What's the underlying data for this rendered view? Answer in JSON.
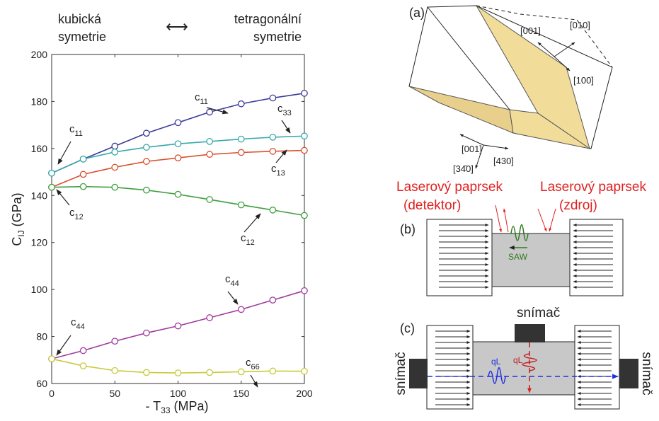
{
  "chart_data": {
    "type": "line",
    "x": [
      0,
      25,
      50,
      75,
      100,
      125,
      150,
      175,
      200
    ],
    "xlim": [
      0,
      200
    ],
    "xticks": [
      0,
      50,
      100,
      150,
      200
    ],
    "ylim": [
      60,
      200
    ],
    "yticks": [
      60,
      80,
      100,
      120,
      140,
      160,
      180,
      200
    ],
    "xlabel": {
      "text": "- T",
      "sub": "33",
      "unit": " (MPa)"
    },
    "ylabel": {
      "text": "C",
      "sub": "IJ",
      "unit": " (GPa)"
    },
    "header": {
      "left": [
        "kubická",
        "symetrie"
      ],
      "arrow": "⟷",
      "right": [
        "tetragonální",
        "symetrie"
      ]
    },
    "series": [
      {
        "color": "#3b3b9a",
        "values": [
          149.5,
          155.5,
          161,
          166.5,
          171,
          175.5,
          179,
          181.5,
          183.5
        ]
      },
      {
        "color": "#3aa8a8",
        "values": [
          149.5,
          155.5,
          158.5,
          160.5,
          162,
          163,
          164,
          164.8,
          165.3
        ]
      },
      {
        "color": "#d9502f",
        "values": [
          143.5,
          149,
          152,
          154.5,
          156,
          157.5,
          158.3,
          158.8,
          159.2
        ]
      },
      {
        "color": "#3e9e3e",
        "values": [
          143.5,
          143.8,
          143.5,
          142.3,
          140.5,
          138.3,
          136,
          133.8,
          131.5
        ]
      },
      {
        "color": "#a03a9e",
        "values": [
          70.5,
          74,
          78,
          81.5,
          84.5,
          88,
          91.5,
          95.5,
          99.5
        ]
      },
      {
        "color": "#c9c93a",
        "values": [
          70.5,
          67.5,
          65.5,
          64.7,
          64.5,
          64.7,
          65,
          65.3,
          65.2
        ]
      }
    ],
    "annotations": [
      {
        "text": "c",
        "sub": "11"
      },
      {
        "text": "c",
        "sub": "33"
      },
      {
        "text": "c",
        "sub": "11"
      },
      {
        "text": "c",
        "sub": "13"
      },
      {
        "text": "c",
        "sub": "12"
      },
      {
        "text": "c",
        "sub": "12"
      },
      {
        "text": "c",
        "sub": "44"
      },
      {
        "text": "c",
        "sub": "44"
      },
      {
        "text": "c",
        "sub": "66"
      }
    ]
  },
  "diagram": {
    "a": {
      "label": "(a)",
      "dirs": [
        "[001]",
        "[010]",
        "[100]",
        "[001]",
        "[430]",
        "[34̄0]"
      ]
    },
    "b": {
      "label": "(b)",
      "laser_left": [
        "Laserový paprsek",
        "(detektor)"
      ],
      "laser_right": [
        "Laserový paprsek",
        "(zdroj)"
      ],
      "wave": "SAW"
    },
    "c": {
      "label": "(c)",
      "sensors": [
        "snímač",
        "snímač",
        "snímač"
      ],
      "waves": [
        "qL",
        "qL"
      ]
    }
  }
}
